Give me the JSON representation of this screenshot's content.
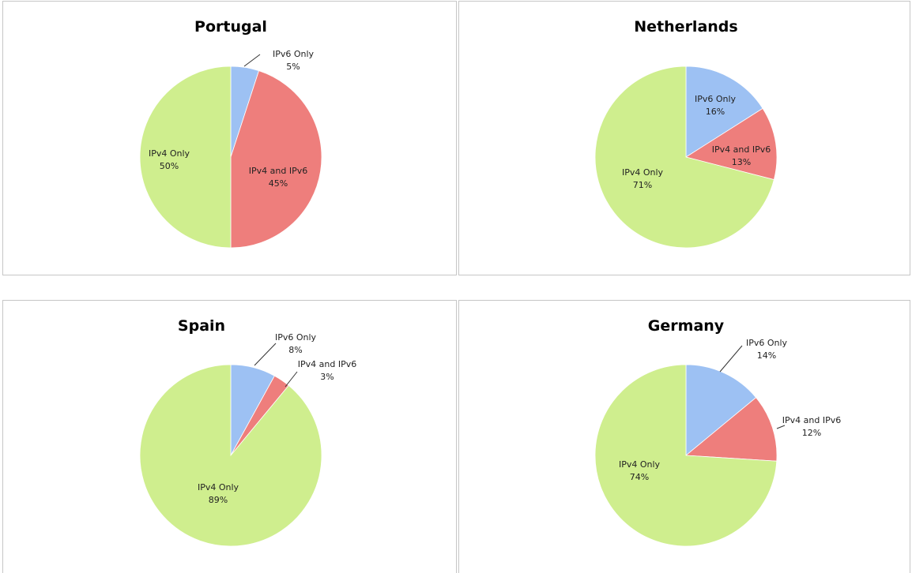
{
  "colors": {
    "ipv6_only": "#9dc1f3",
    "ipv4_and_ipv6": "#ee7e7c",
    "ipv4_only": "#cfee8e"
  },
  "chart_data": [
    {
      "type": "pie",
      "title": "Portugal",
      "categories": [
        "IPv6 Only",
        "IPv4 and IPv6",
        "IPv4 Only"
      ],
      "values": [
        5,
        45,
        50
      ],
      "value_labels": [
        "5%",
        "45%",
        "50%"
      ],
      "legend": "none"
    },
    {
      "type": "pie",
      "title": "Netherlands",
      "categories": [
        "IPv6 Only",
        "IPv4 and IPv6",
        "IPv4 Only"
      ],
      "values": [
        16,
        13,
        71
      ],
      "value_labels": [
        "16%",
        "13%",
        "71%"
      ],
      "legend": "none"
    },
    {
      "type": "pie",
      "title": "Spain",
      "categories": [
        "IPv6 Only",
        "IPv4 and IPv6",
        "IPv4 Only"
      ],
      "values": [
        8,
        3,
        89
      ],
      "value_labels": [
        "8%",
        "3%",
        "89%"
      ],
      "legend": "none"
    },
    {
      "type": "pie",
      "title": "Germany",
      "categories": [
        "IPv6 Only",
        "IPv4 and IPv6",
        "IPv4 Only"
      ],
      "values": [
        14,
        12,
        74
      ],
      "value_labels": [
        "14%",
        "12%",
        "74%"
      ],
      "legend": "none"
    }
  ]
}
